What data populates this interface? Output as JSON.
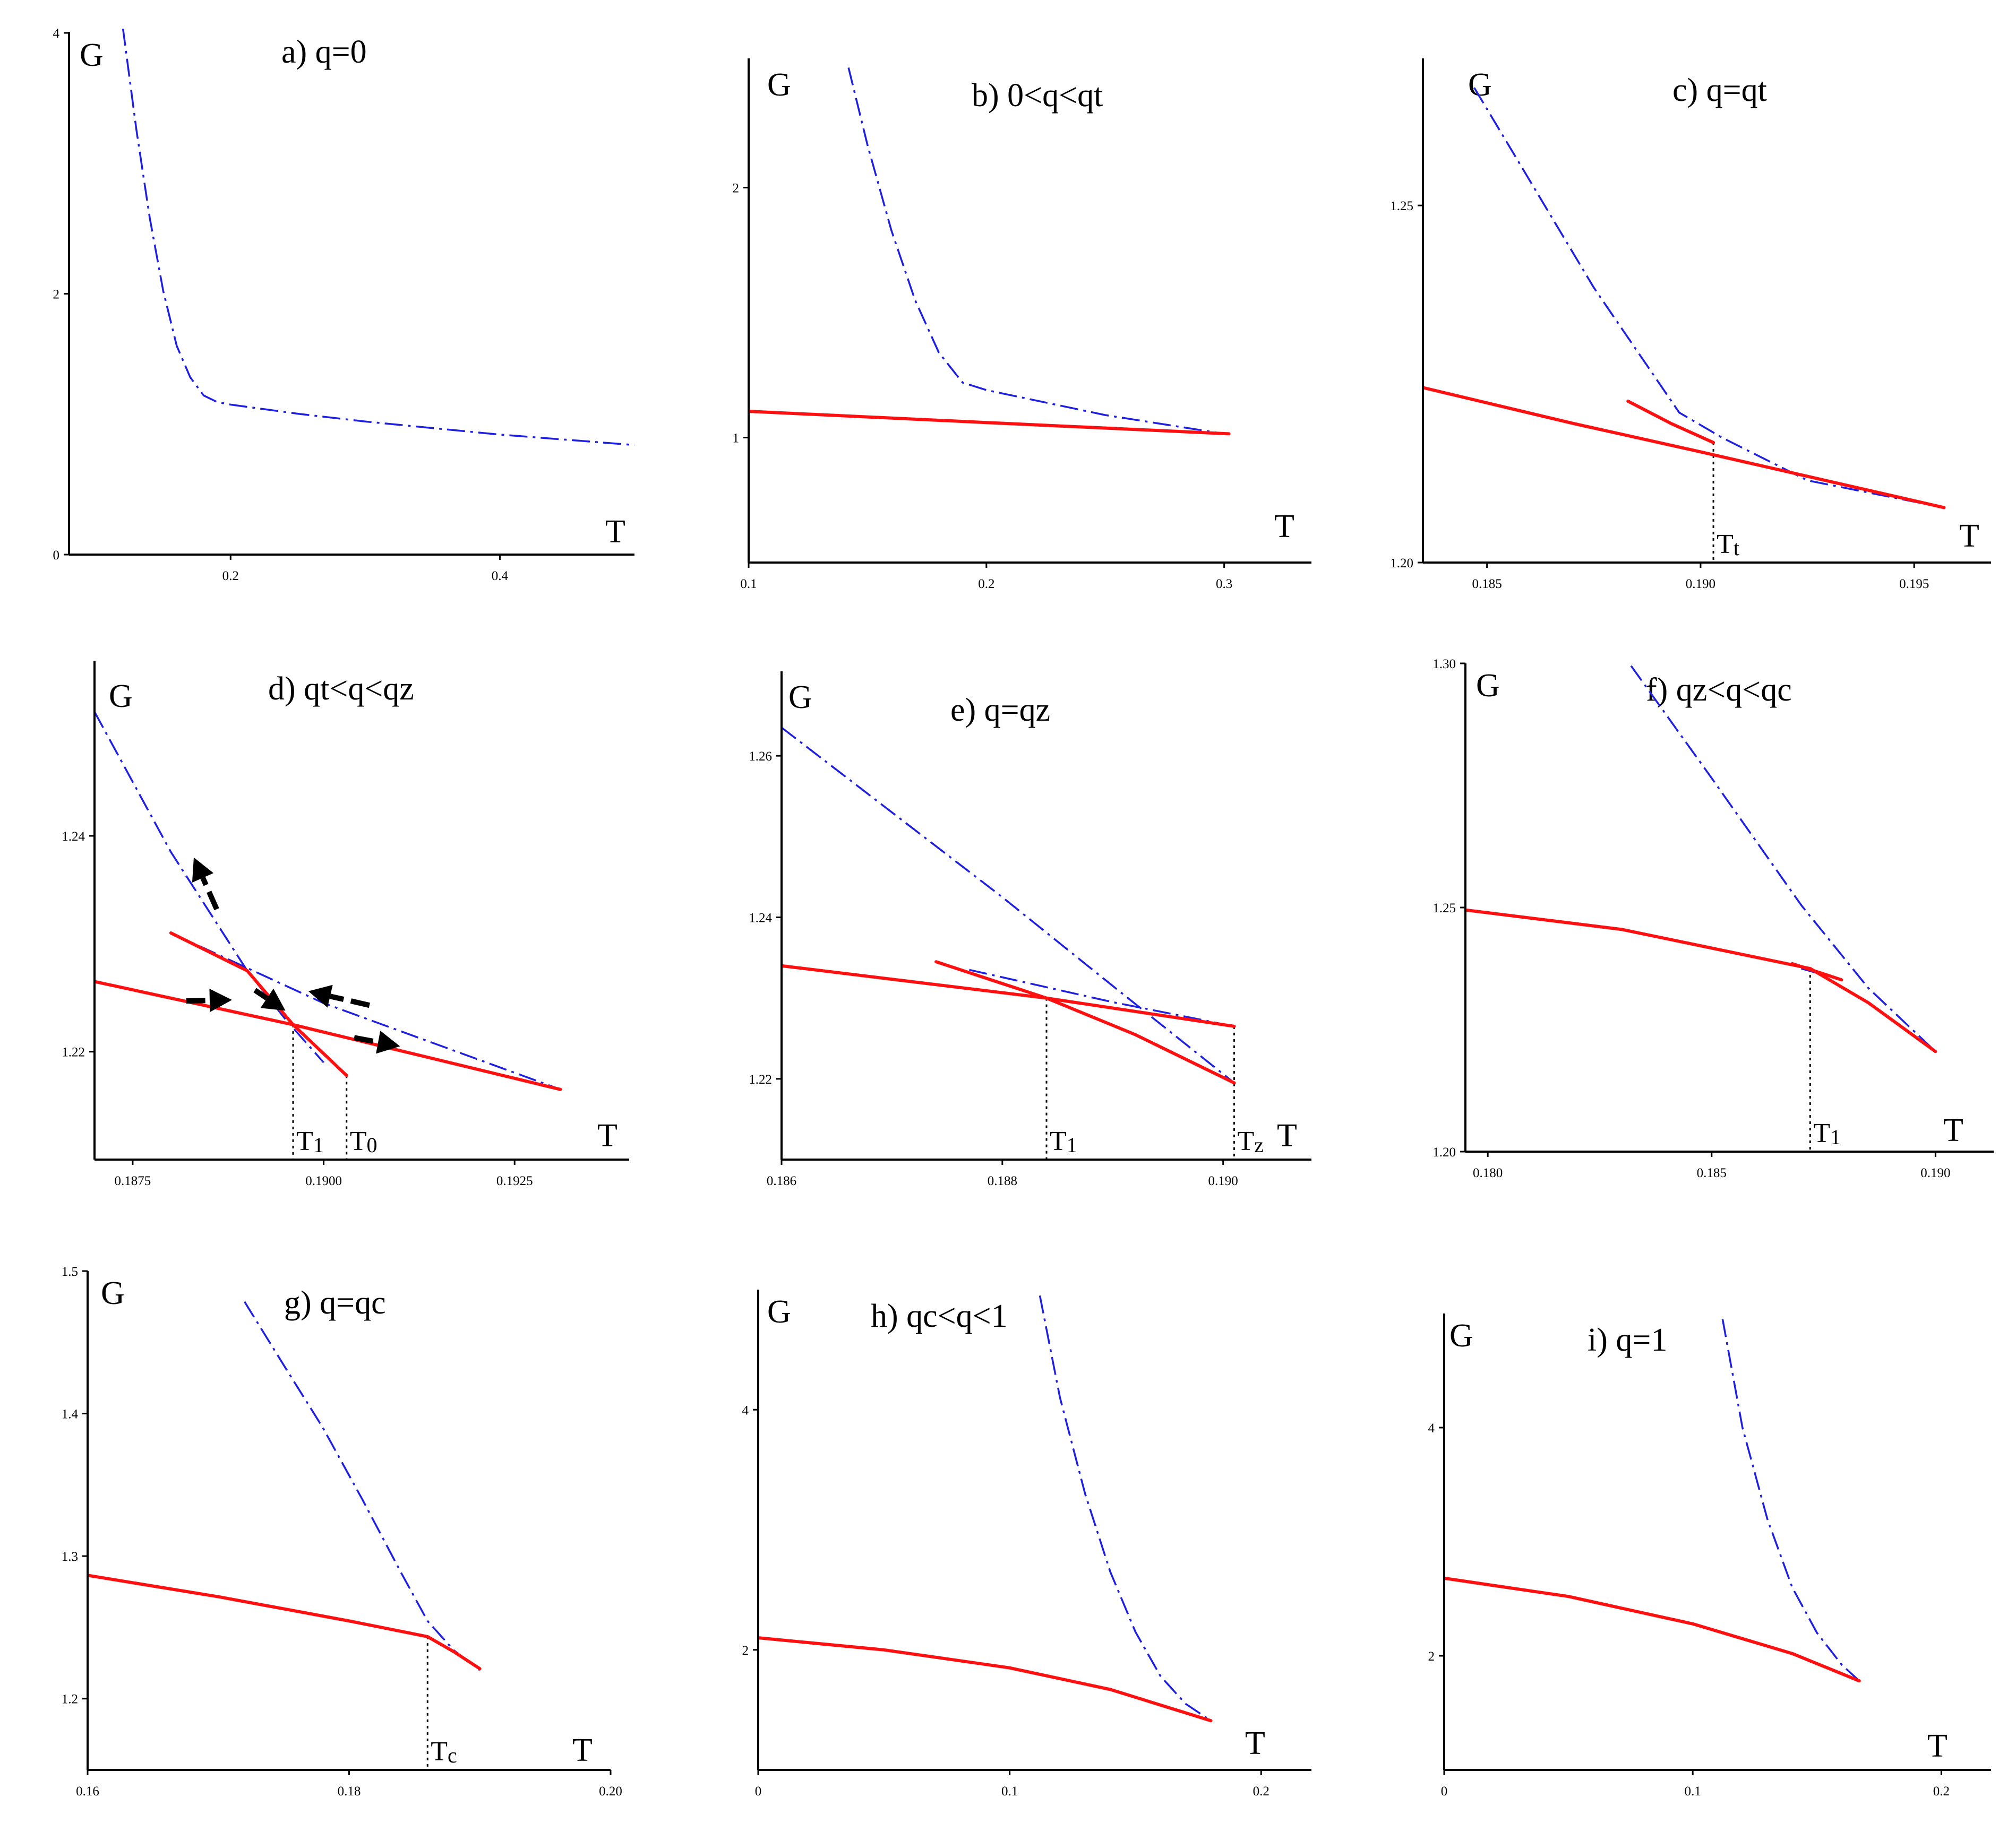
{
  "chart_data": [
    {
      "id": "a",
      "type": "line",
      "title": "a) q=0",
      "xlabel": "T",
      "ylabel": "G",
      "xlim": [
        0.08,
        0.5
      ],
      "ylim": [
        0,
        4
      ],
      "xticks": [
        {
          "v": 0.2,
          "label": "0.2"
        },
        {
          "v": 0.4,
          "label": "0.4"
        }
      ],
      "yticks": [
        {
          "v": 0,
          "label": "0"
        },
        {
          "v": 2,
          "label": "2"
        },
        {
          "v": 4,
          "label": "4"
        }
      ],
      "series": [
        {
          "name": "dash-dot",
          "style": "blue",
          "points": [
            [
              0.12,
              4.04
            ],
            [
              0.13,
              3.26
            ],
            [
              0.14,
              2.58
            ],
            [
              0.15,
              2.02
            ],
            [
              0.16,
              1.6
            ],
            [
              0.17,
              1.36
            ],
            [
              0.18,
              1.22
            ],
            [
              0.19,
              1.17
            ],
            [
              0.2,
              1.15
            ],
            [
              0.25,
              1.08
            ],
            [
              0.3,
              1.02
            ],
            [
              0.35,
              0.97
            ],
            [
              0.4,
              0.92
            ],
            [
              0.45,
              0.88
            ],
            [
              0.5,
              0.84
            ]
          ]
        }
      ],
      "verticals": [],
      "arrows": []
    },
    {
      "id": "b",
      "type": "line",
      "title": "b) 0<q<qt",
      "xlabel": "T",
      "ylabel": "G",
      "xlim": [
        0.1,
        0.33
      ],
      "ylim": [
        0.5,
        2.5
      ],
      "xticks": [
        {
          "v": 0.1,
          "label": "0.1"
        },
        {
          "v": 0.2,
          "label": "0.2"
        },
        {
          "v": 0.3,
          "label": "0.3"
        }
      ],
      "yticks": [
        {
          "v": 1,
          "label": "1"
        },
        {
          "v": 2,
          "label": "2"
        }
      ],
      "series": [
        {
          "name": "dash-dot",
          "style": "blue",
          "points": [
            [
              0.142,
              2.48
            ],
            [
              0.15,
              2.17
            ],
            [
              0.16,
              1.83
            ],
            [
              0.17,
              1.55
            ],
            [
              0.18,
              1.34
            ],
            [
              0.19,
              1.22
            ],
            [
              0.2,
              1.19
            ],
            [
              0.25,
              1.09
            ],
            [
              0.3,
              1.015
            ]
          ]
        },
        {
          "name": "solid",
          "style": "red",
          "points": [
            [
              0.1,
              1.105
            ],
            [
              0.2,
              1.06
            ],
            [
              0.302,
              1.015
            ]
          ]
        }
      ],
      "verticals": [],
      "arrows": []
    },
    {
      "id": "c",
      "type": "line",
      "title": "c) q=qt",
      "xlabel": "T",
      "ylabel": "G",
      "xlim": [
        0.1835,
        0.1968
      ],
      "ylim": [
        1.2,
        1.27
      ],
      "xticks": [
        {
          "v": 0.185,
          "label": "0.185"
        },
        {
          "v": 0.19,
          "label": "0.190"
        },
        {
          "v": 0.195,
          "label": "0.195"
        }
      ],
      "yticks": [
        {
          "v": 1.2,
          "label": "1.20"
        },
        {
          "v": 1.25,
          "label": "1.25"
        }
      ],
      "series": [
        {
          "name": "dash-dot upper",
          "style": "blue",
          "points": [
            [
              0.1847,
              1.2665
            ],
            [
              0.1875,
              1.2385
            ],
            [
              0.1895,
              1.221
            ],
            [
              0.1905,
              1.2175
            ],
            [
              0.1925,
              1.2115
            ],
            [
              0.1956,
              1.2078
            ]
          ]
        },
        {
          "name": "solid lower",
          "style": "red",
          "points": [
            [
              0.1835,
              1.2245
            ],
            [
              0.187,
              1.2195
            ],
            [
              0.19,
              1.2155
            ],
            [
              0.1957,
              1.2077
            ]
          ]
        },
        {
          "name": "solid branch",
          "style": "red",
          "points": [
            [
              0.1883,
              1.2226
            ],
            [
              0.1893,
              1.2195
            ],
            [
              0.1903,
              1.2168
            ]
          ]
        }
      ],
      "verticals": [
        {
          "x": 0.1903,
          "yTop": 1.2168,
          "label": "Tt",
          "label_main": "T",
          "label_sub": "t"
        }
      ],
      "arrows": []
    },
    {
      "id": "d",
      "type": "line",
      "title": "d) qt<q<qz",
      "xlabel": "T",
      "ylabel": "G",
      "xlim": [
        0.187,
        0.194
      ],
      "ylim": [
        1.21,
        1.255
      ],
      "xticks": [
        {
          "v": 0.1875,
          "label": "0.1875"
        },
        {
          "v": 0.19,
          "label": "0.1900"
        },
        {
          "v": 0.1925,
          "label": "0.1925"
        }
      ],
      "yticks": [
        {
          "v": 1.22,
          "label": "1.22"
        },
        {
          "v": 1.24,
          "label": "1.24"
        }
      ],
      "series": [
        {
          "name": "dash-dot upper",
          "style": "blue",
          "points": [
            [
              0.187,
              1.2515
            ],
            [
              0.188,
              1.2385
            ],
            [
              0.189,
              1.2275
            ],
            [
              0.1895,
              1.223
            ],
            [
              0.19,
              1.219
            ]
          ]
        },
        {
          "name": "dash-dot lower",
          "style": "blue",
          "points": [
            [
              0.188,
              1.231
            ],
            [
              0.19,
              1.2245
            ],
            [
              0.1931,
              1.2165
            ]
          ]
        },
        {
          "name": "solid lower",
          "style": "red",
          "points": [
            [
              0.187,
              1.2265
            ],
            [
              0.1896,
              1.2225
            ],
            [
              0.1931,
              1.2165
            ]
          ]
        },
        {
          "name": "solid branch",
          "style": "red",
          "points": [
            [
              0.188,
              1.231
            ],
            [
              0.189,
              1.2275
            ],
            [
              0.1896,
              1.2225
            ],
            [
              0.1903,
              1.2178
            ]
          ]
        }
      ],
      "verticals": [
        {
          "x": 0.1896,
          "yTop": 1.2225,
          "label": "T1",
          "label_main": "T",
          "label_sub": "1"
        },
        {
          "x": 0.1903,
          "yTop": 1.2178,
          "label": "T0",
          "label_main": "T",
          "label_sub": "0"
        }
      ],
      "arrows": [
        [
          0.1882,
          1.2247,
          0.1888,
          1.2248
        ],
        [
          0.1886,
          1.2332,
          0.1883,
          1.238
        ],
        [
          0.1891,
          1.2257,
          0.1895,
          1.2238
        ],
        [
          0.1906,
          1.2243,
          0.1898,
          1.2256
        ],
        [
          0.1904,
          1.2213,
          0.191,
          1.2205
        ]
      ]
    },
    {
      "id": "e",
      "type": "line",
      "title": "e) q=qz",
      "xlabel": "T",
      "ylabel": "G",
      "xlim": [
        0.186,
        0.1908
      ],
      "ylim": [
        1.21,
        1.27
      ],
      "xticks": [
        {
          "v": 0.186,
          "label": "0.186"
        },
        {
          "v": 0.188,
          "label": "0.188"
        },
        {
          "v": 0.19,
          "label": "0.190"
        }
      ],
      "yticks": [
        {
          "v": 1.22,
          "label": "1.22"
        },
        {
          "v": 1.24,
          "label": "1.24"
        },
        {
          "v": 1.26,
          "label": "1.26"
        }
      ],
      "series": [
        {
          "name": "dash-dot upper",
          "style": "blue",
          "points": [
            [
              0.186,
              1.2635
            ],
            [
              0.187,
              1.253
            ],
            [
              0.188,
              1.2425
            ],
            [
              0.189,
              1.2315
            ],
            [
              0.1901,
              1.2195
            ]
          ]
        },
        {
          "name": "dash-dot lower",
          "style": "blue",
          "points": [
            [
              0.1877,
              1.2335
            ],
            [
              0.189,
              1.2295
            ],
            [
              0.1901,
              1.2265
            ]
          ]
        },
        {
          "name": "solid lower",
          "style": "red",
          "points": [
            [
              0.186,
              1.234
            ],
            [
              0.1884,
              1.23
            ],
            [
              0.1901,
              1.2265
            ]
          ]
        },
        {
          "name": "solid branch",
          "style": "red",
          "points": [
            [
              0.1874,
              1.2345
            ],
            [
              0.1884,
              1.23
            ],
            [
              0.1892,
              1.2255
            ],
            [
              0.1901,
              1.2195
            ]
          ]
        }
      ],
      "verticals": [
        {
          "x": 0.1884,
          "yTop": 1.23,
          "label": "T1",
          "label_main": "T",
          "label_sub": "1"
        },
        {
          "x": 0.1901,
          "yTop": 1.2265,
          "label": "Tz",
          "label_main": "T",
          "label_sub": "z"
        }
      ],
      "arrows": []
    },
    {
      "id": "f",
      "type": "line",
      "title": "f) qz<q<qc",
      "xlabel": "T",
      "ylabel": "G",
      "xlim": [
        0.1795,
        0.1913
      ],
      "ylim": [
        1.2,
        1.3
      ],
      "xticks": [
        {
          "v": 0.18,
          "label": "0.180"
        },
        {
          "v": 0.185,
          "label": "0.185"
        },
        {
          "v": 0.19,
          "label": "0.190"
        }
      ],
      "yticks": [
        {
          "v": 1.2,
          "label": "1.20"
        },
        {
          "v": 1.25,
          "label": "1.25"
        },
        {
          "v": 1.3,
          "label": "1.30"
        }
      ],
      "series": [
        {
          "name": "dash-dot upper",
          "style": "blue",
          "points": [
            [
              0.1832,
              1.2995
            ],
            [
              0.185,
              1.2765
            ],
            [
              0.187,
              1.2505
            ],
            [
              0.1885,
              1.2335
            ],
            [
              0.19,
              1.2205
            ]
          ]
        },
        {
          "name": "dash-dot lower",
          "style": "blue",
          "points": [
            [
              0.187,
              1.2375
            ],
            [
              0.1879,
              1.2352
            ]
          ]
        },
        {
          "name": "solid lower",
          "style": "red",
          "points": [
            [
              0.1795,
              1.2495
            ],
            [
              0.183,
              1.2455
            ],
            [
              0.1872,
              1.2375
            ],
            [
              0.1885,
              1.2305
            ],
            [
              0.19,
              1.2205
            ]
          ]
        },
        {
          "name": "solid branch",
          "style": "red",
          "points": [
            [
              0.1868,
              1.2385
            ],
            [
              0.1879,
              1.2352
            ]
          ]
        }
      ],
      "verticals": [
        {
          "x": 0.1872,
          "yTop": 1.2375,
          "label": "T1",
          "label_main": "T",
          "label_sub": "1"
        }
      ],
      "arrows": []
    },
    {
      "id": "g",
      "type": "line",
      "title": "g) q=qc",
      "xlabel": "T",
      "ylabel": "G",
      "xlim": [
        0.16,
        0.2
      ],
      "ylim": [
        1.15,
        1.5
      ],
      "xticks": [
        {
          "v": 0.16,
          "label": "0.16"
        },
        {
          "v": 0.18,
          "label": "0.18"
        },
        {
          "v": 0.2,
          "label": "0.20"
        }
      ],
      "yticks": [
        {
          "v": 1.2,
          "label": "1.2"
        },
        {
          "v": 1.3,
          "label": "1.3"
        },
        {
          "v": 1.4,
          "label": "1.4"
        },
        {
          "v": 1.5,
          "label": "1.5"
        }
      ],
      "series": [
        {
          "name": "dash-dot",
          "style": "blue",
          "points": [
            [
              0.172,
              1.4785
            ],
            [
              0.175,
              1.434
            ],
            [
              0.178,
              1.39
            ],
            [
              0.181,
              1.34
            ],
            [
              0.184,
              1.288
            ],
            [
              0.186,
              1.2545
            ],
            [
              0.188,
              1.234
            ],
            [
              0.19,
              1.22
            ]
          ]
        },
        {
          "name": "solid",
          "style": "red",
          "points": [
            [
              0.16,
              1.2865
            ],
            [
              0.17,
              1.2715
            ],
            [
              0.18,
              1.2545
            ],
            [
              0.186,
              1.2435
            ],
            [
              0.188,
              1.233
            ],
            [
              0.19,
              1.221
            ]
          ]
        }
      ],
      "verticals": [
        {
          "x": 0.186,
          "yTop": 1.2435,
          "label": "Tc",
          "label_main": "T",
          "label_sub": "c"
        }
      ],
      "arrows": []
    },
    {
      "id": "h",
      "type": "line",
      "title": "h) qc<q<1",
      "xlabel": "T",
      "ylabel": "G",
      "xlim": [
        0,
        0.22
      ],
      "ylim": [
        1,
        5
      ],
      "xticks": [
        {
          "v": 0,
          "label": "0"
        },
        {
          "v": 0.1,
          "label": "0.1"
        },
        {
          "v": 0.2,
          "label": "0.2"
        }
      ],
      "yticks": [
        {
          "v": 2,
          "label": "2"
        },
        {
          "v": 4,
          "label": "4"
        }
      ],
      "series": [
        {
          "name": "dash-dot",
          "style": "blue",
          "points": [
            [
              0.112,
              4.95
            ],
            [
              0.12,
              4.1
            ],
            [
              0.13,
              3.3
            ],
            [
              0.14,
              2.65
            ],
            [
              0.15,
              2.15
            ],
            [
              0.16,
              1.78
            ],
            [
              0.17,
              1.55
            ],
            [
              0.18,
              1.41
            ]
          ]
        },
        {
          "name": "solid",
          "style": "red",
          "points": [
            [
              0,
              2.1
            ],
            [
              0.05,
              2.0
            ],
            [
              0.1,
              1.85
            ],
            [
              0.14,
              1.67
            ],
            [
              0.18,
              1.41
            ]
          ]
        }
      ],
      "verticals": [],
      "arrows": []
    },
    {
      "id": "i",
      "type": "line",
      "title": "i) q=1",
      "xlabel": "T",
      "ylabel": "G",
      "xlim": [
        0,
        0.22
      ],
      "ylim": [
        1,
        5
      ],
      "xticks": [
        {
          "v": 0,
          "label": "0"
        },
        {
          "v": 0.1,
          "label": "0.1"
        },
        {
          "v": 0.2,
          "label": "0.2"
        }
      ],
      "yticks": [
        {
          "v": 2,
          "label": "2"
        },
        {
          "v": 4,
          "label": "4"
        }
      ],
      "series": [
        {
          "name": "dash-dot",
          "style": "blue",
          "points": [
            [
              0.112,
              4.95
            ],
            [
              0.12,
              4.0
            ],
            [
              0.13,
              3.2
            ],
            [
              0.14,
              2.6
            ],
            [
              0.15,
              2.2
            ],
            [
              0.16,
              1.92
            ],
            [
              0.167,
              1.78
            ]
          ]
        },
        {
          "name": "solid",
          "style": "red",
          "points": [
            [
              0,
              2.68
            ],
            [
              0.05,
              2.52
            ],
            [
              0.1,
              2.28
            ],
            [
              0.14,
              2.02
            ],
            [
              0.167,
              1.78
            ]
          ]
        }
      ],
      "verticals": [],
      "arrows": []
    }
  ]
}
